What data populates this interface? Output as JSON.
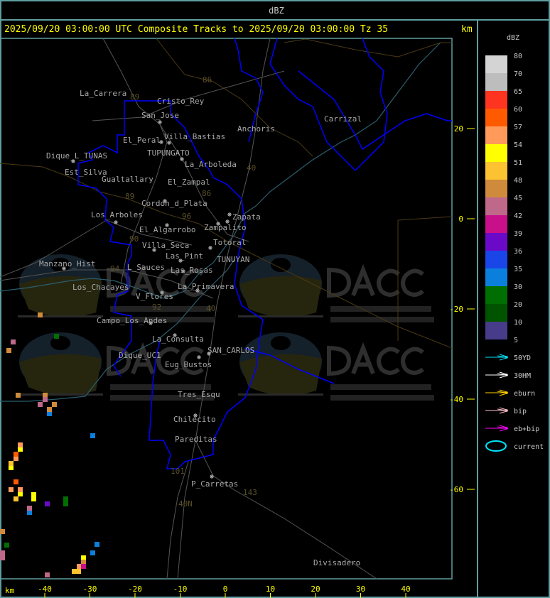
{
  "header": {
    "title": "dBZ"
  },
  "plot": {
    "title": "2025/09/20 03:00:00 UTC Composite Tracks to 2025/09/20 03:00:00 Tz 35",
    "y_unit": "km",
    "x_unit": "km",
    "y_ticks": [
      "20",
      "0",
      "-20",
      "-40",
      "-60"
    ],
    "x_ticks": [
      "-40",
      "-30",
      "-20",
      "-10",
      "0",
      "10",
      "20",
      "30",
      "40"
    ]
  },
  "legend": {
    "title": "dBZ",
    "scale": [
      {
        "label": "80",
        "color": "#d4d4d4"
      },
      {
        "label": "70",
        "color": "#bdbdbd"
      },
      {
        "label": "65",
        "color": "#ff3420"
      },
      {
        "label": "60",
        "color": "#ff5a00"
      },
      {
        "label": "57",
        "color": "#ff9a5a"
      },
      {
        "label": "54",
        "color": "#ffff00"
      },
      {
        "label": "51",
        "color": "#fcc232"
      },
      {
        "label": "48",
        "color": "#d08a3c"
      },
      {
        "label": "45",
        "color": "#c0688a"
      },
      {
        "label": "42",
        "color": "#c8108a"
      },
      {
        "label": "39",
        "color": "#6a0ac8"
      },
      {
        "label": "36",
        "color": "#1a46e8"
      },
      {
        "label": "35",
        "color": "#0a80dc"
      },
      {
        "label": "30",
        "color": "#006e00"
      },
      {
        "label": "20",
        "color": "#005400"
      },
      {
        "label": "10",
        "color": "#463c8a"
      },
      {
        "label": "5",
        "color": ""
      }
    ],
    "tracks": [
      {
        "label": "50YD",
        "color": "#00e5ff"
      },
      {
        "label": "30HM",
        "color": "#ffffff"
      },
      {
        "label": "eburn",
        "color": "#ffd000"
      },
      {
        "label": "bip",
        "color": "#ffc0cb"
      },
      {
        "label": "eb+bip",
        "color": "#ff00ff"
      },
      {
        "label": "current",
        "color": "#00e5ff"
      }
    ]
  },
  "towns": [
    "La_Carrera",
    "Cristo_Rey",
    "San_Jose",
    "Villa_Bastias",
    "El_Peral",
    "TUPUNGATO",
    "Dique_L_TUNAS",
    "La_Arboleda",
    "Est_Silva",
    "Gualtallary",
    "El_Zampal",
    "Cordon_d_Plata",
    "Los_Arboles",
    "Zapata",
    "El_Algarrobo",
    "Zampalito",
    "Totoral",
    "Villa_Seca",
    "Las_Pint",
    "TUNUYAN",
    "Manzano_Hist",
    "L_Sauces",
    "Las_Rosas",
    "Los_Chacayes",
    "La_Primavera",
    "V_Flores",
    "Campo_Los_Andes",
    "La_Consulta",
    "SAN_CARLOS",
    "Dique_UC1",
    "Eug_Bustos",
    "Tres_Esqu",
    "Chilecito",
    "Pareditas",
    "P_Carretas",
    "Anchoris",
    "Carrizal",
    "Divisadero"
  ],
  "routes": [
    "86",
    "89",
    "40",
    "86",
    "89",
    "96",
    "90",
    "94",
    "92",
    "40",
    "101",
    "143",
    "40N"
  ],
  "watermark": {
    "logo": "DACC",
    "line1": "Dirección de Agricultura",
    "line2": "y Contingencias Climáticas",
    "url": "http://www.contingencias.mendoza.gov.ar"
  }
}
